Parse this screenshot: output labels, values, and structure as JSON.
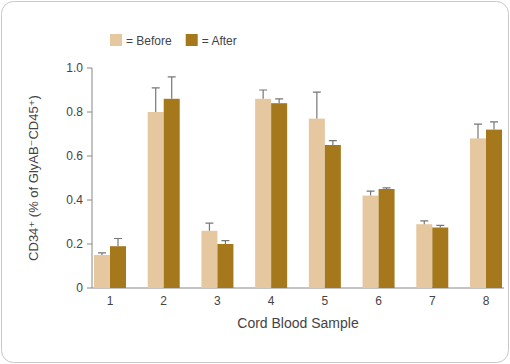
{
  "chart_data": {
    "type": "bar",
    "xlabel": "Cord Blood Sample",
    "ylabel": "CD34⁺ (% of GlyAB⁻CD45⁺)",
    "categories": [
      "1",
      "2",
      "3",
      "4",
      "5",
      "6",
      "7",
      "8"
    ],
    "series": [
      {
        "name": "= Before",
        "color": "#e6c8a0",
        "values": [
          0.15,
          0.8,
          0.26,
          0.86,
          0.77,
          0.42,
          0.29,
          0.68
        ],
        "errors": [
          0.01,
          0.11,
          0.035,
          0.04,
          0.12,
          0.02,
          0.015,
          0.065
        ]
      },
      {
        "name": "= After",
        "color": "#a6781c",
        "values": [
          0.19,
          0.86,
          0.2,
          0.84,
          0.65,
          0.45,
          0.275,
          0.72
        ],
        "errors": [
          0.035,
          0.1,
          0.015,
          0.02,
          0.02,
          0.005,
          0.01,
          0.035
        ]
      }
    ],
    "ylim": [
      0,
      1
    ],
    "yticks": [
      0,
      0.2,
      0.4,
      0.6,
      0.8,
      {
        "value": 1,
        "label": "1.0"
      }
    ],
    "grid": false,
    "legend": "top-left"
  }
}
